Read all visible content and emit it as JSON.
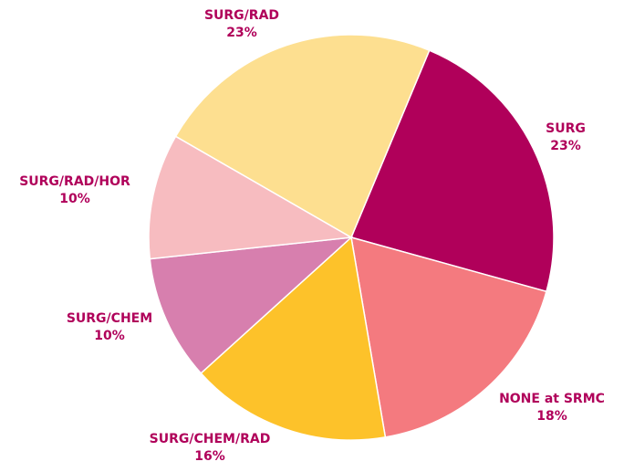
{
  "chart_data": {
    "type": "pie",
    "categories": [
      "SURG",
      "NONE at SRMC",
      "SURG/CHEM/RAD",
      "SURG/CHEM",
      "SURG/RAD/HOR",
      "SURG/RAD"
    ],
    "values": [
      23,
      18,
      16,
      10,
      10,
      23
    ],
    "value_labels": [
      "23%",
      "18%",
      "16%",
      "10%",
      "10%",
      "23%"
    ],
    "colors": [
      "#b0005a",
      "#f47a7f",
      "#fdc22a",
      "#d77fae",
      "#f7bcc0",
      "#fddf90"
    ],
    "label_color": "#b0005a"
  }
}
